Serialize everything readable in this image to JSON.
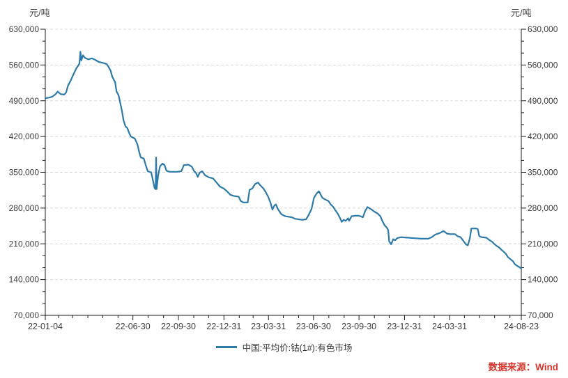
{
  "chart": {
    "unit_left": "元/吨",
    "unit_right": "元/吨",
    "legend_label": "中国:平均价:钴(1#):有色市场",
    "source": "数据来源：Wind"
  },
  "colors": {
    "line": "#2d7aa8",
    "grid": "#d8d8d8",
    "axis": "#1a1a1a",
    "tick_label": "#3d3d3d",
    "source_red": "#d9342b"
  },
  "chart_data": {
    "type": "line",
    "title": "",
    "ylabel": "元/吨",
    "ylim": [
      70000,
      630000
    ],
    "y_major_step": 70000,
    "y_minor_divisions": 3,
    "grid": "horizontal-dashed",
    "legend_position": "bottom-center",
    "x_range": [
      "2022-01-04",
      "2024-08-23"
    ],
    "y_ticks": [
      {
        "v": 630000,
        "label": "630,000"
      },
      {
        "v": 560000,
        "label": "560,000"
      },
      {
        "v": 490000,
        "label": "490,000"
      },
      {
        "v": 420000,
        "label": "420,000"
      },
      {
        "v": 350000,
        "label": "350,000"
      },
      {
        "v": 280000,
        "label": "280,000"
      },
      {
        "v": 210000,
        "label": "210,000"
      },
      {
        "v": 140000,
        "label": "140,000"
      },
      {
        "v": 70000,
        "label": "70,000"
      }
    ],
    "x_ticks": [
      {
        "date": "2022-01-04",
        "label": "22-01-04"
      },
      {
        "date": "2022-06-30",
        "label": "22-06-30"
      },
      {
        "date": "2022-09-30",
        "label": "22-09-30"
      },
      {
        "date": "2022-12-31",
        "label": "22-12-31"
      },
      {
        "date": "2023-03-31",
        "label": "23-03-31"
      },
      {
        "date": "2023-06-30",
        "label": "23-06-30"
      },
      {
        "date": "2023-09-30",
        "label": "23-09-30"
      },
      {
        "date": "2023-12-31",
        "label": "23-12-31"
      },
      {
        "date": "2024-03-31",
        "label": "24-03-31"
      },
      {
        "date": "2024-08-23",
        "label": "24-08-23"
      }
    ],
    "series": [
      {
        "name": "中国:平均价:钴(1#):有色市场",
        "color": "#2d7aa8",
        "points": [
          [
            "2022-01-04",
            495000
          ],
          [
            "2022-01-11",
            496000
          ],
          [
            "2022-01-18",
            498000
          ],
          [
            "2022-01-25",
            503000
          ],
          [
            "2022-01-29",
            508000
          ],
          [
            "2022-02-04",
            503000
          ],
          [
            "2022-02-11",
            502000
          ],
          [
            "2022-02-15",
            506000
          ],
          [
            "2022-02-19",
            520000
          ],
          [
            "2022-02-25",
            531000
          ],
          [
            "2022-03-03",
            544000
          ],
          [
            "2022-03-08",
            554000
          ],
          [
            "2022-03-11",
            558000
          ],
          [
            "2022-03-14",
            563000
          ],
          [
            "2022-03-16",
            586000
          ],
          [
            "2022-03-18",
            569000
          ],
          [
            "2022-03-21",
            579000
          ],
          [
            "2022-03-25",
            574000
          ],
          [
            "2022-04-01",
            571000
          ],
          [
            "2022-04-08",
            573000
          ],
          [
            "2022-04-15",
            570000
          ],
          [
            "2022-04-22",
            566000
          ],
          [
            "2022-05-01",
            564000
          ],
          [
            "2022-05-08",
            562000
          ],
          [
            "2022-05-12",
            556000
          ],
          [
            "2022-05-16",
            549000
          ],
          [
            "2022-05-19",
            538000
          ],
          [
            "2022-05-23",
            530000
          ],
          [
            "2022-05-25",
            527000
          ],
          [
            "2022-05-28",
            508000
          ],
          [
            "2022-06-01",
            501000
          ],
          [
            "2022-06-04",
            488000
          ],
          [
            "2022-06-08",
            470000
          ],
          [
            "2022-06-11",
            452000
          ],
          [
            "2022-06-15",
            440000
          ],
          [
            "2022-06-19",
            436000
          ],
          [
            "2022-06-22",
            428000
          ],
          [
            "2022-06-26",
            420000
          ],
          [
            "2022-07-04",
            416000
          ],
          [
            "2022-07-09",
            405000
          ],
          [
            "2022-07-13",
            389000
          ],
          [
            "2022-07-16",
            379000
          ],
          [
            "2022-07-22",
            377000
          ],
          [
            "2022-07-26",
            364000
          ],
          [
            "2022-07-30",
            352000
          ],
          [
            "2022-08-06",
            350000
          ],
          [
            "2022-08-10",
            332000
          ],
          [
            "2022-08-13",
            319000
          ],
          [
            "2022-08-15",
            317000
          ],
          [
            "2022-08-16",
            379000
          ],
          [
            "2022-08-17",
            317000
          ],
          [
            "2022-08-20",
            344000
          ],
          [
            "2022-08-24",
            362000
          ],
          [
            "2022-08-29",
            367000
          ],
          [
            "2022-09-02",
            364000
          ],
          [
            "2022-09-06",
            353000
          ],
          [
            "2022-09-13",
            351000
          ],
          [
            "2022-09-27",
            351000
          ],
          [
            "2022-10-06",
            352000
          ],
          [
            "2022-10-11",
            364000
          ],
          [
            "2022-10-20",
            365000
          ],
          [
            "2022-10-27",
            361000
          ],
          [
            "2022-11-01",
            352000
          ],
          [
            "2022-11-05",
            348000
          ],
          [
            "2022-11-08",
            341000
          ],
          [
            "2022-11-12",
            349000
          ],
          [
            "2022-11-17",
            352000
          ],
          [
            "2022-11-23",
            344000
          ],
          [
            "2022-12-01",
            340000
          ],
          [
            "2022-12-09",
            338000
          ],
          [
            "2022-12-16",
            330000
          ],
          [
            "2022-12-23",
            322000
          ],
          [
            "2022-12-31",
            318000
          ],
          [
            "2023-01-06",
            313000
          ],
          [
            "2023-01-13",
            306000
          ],
          [
            "2023-01-19",
            304000
          ],
          [
            "2023-01-30",
            302000
          ],
          [
            "2023-02-03",
            294000
          ],
          [
            "2023-02-08",
            291000
          ],
          [
            "2023-02-17",
            291000
          ],
          [
            "2023-02-21",
            316000
          ],
          [
            "2023-02-26",
            318000
          ],
          [
            "2023-03-04",
            327000
          ],
          [
            "2023-03-10",
            330000
          ],
          [
            "2023-03-14",
            325000
          ],
          [
            "2023-03-21",
            318000
          ],
          [
            "2023-03-25",
            312000
          ],
          [
            "2023-03-30",
            303000
          ],
          [
            "2023-04-04",
            291000
          ],
          [
            "2023-04-08",
            277000
          ],
          [
            "2023-04-12",
            285000
          ],
          [
            "2023-04-15",
            287000
          ],
          [
            "2023-04-19",
            278000
          ],
          [
            "2023-04-26",
            268000
          ],
          [
            "2023-05-04",
            264000
          ],
          [
            "2023-05-17",
            262000
          ],
          [
            "2023-05-24",
            259000
          ],
          [
            "2023-06-07",
            257000
          ],
          [
            "2023-06-15",
            258000
          ],
          [
            "2023-06-20",
            266000
          ],
          [
            "2023-06-26",
            278000
          ],
          [
            "2023-07-01",
            300000
          ],
          [
            "2023-07-06",
            308000
          ],
          [
            "2023-07-11",
            313000
          ],
          [
            "2023-07-18",
            300000
          ],
          [
            "2023-07-25",
            296000
          ],
          [
            "2023-07-30",
            294000
          ],
          [
            "2023-08-04",
            287000
          ],
          [
            "2023-08-09",
            282000
          ],
          [
            "2023-08-13",
            276000
          ],
          [
            "2023-08-18",
            269000
          ],
          [
            "2023-08-23",
            260000
          ],
          [
            "2023-08-26",
            253000
          ],
          [
            "2023-08-30",
            257000
          ],
          [
            "2023-09-03",
            255000
          ],
          [
            "2023-09-08",
            260000
          ],
          [
            "2023-09-10",
            255000
          ],
          [
            "2023-09-15",
            264000
          ],
          [
            "2023-09-22",
            265000
          ],
          [
            "2023-09-30",
            265000
          ],
          [
            "2023-10-08",
            262000
          ],
          [
            "2023-10-12",
            273000
          ],
          [
            "2023-10-17",
            282000
          ],
          [
            "2023-10-24",
            278000
          ],
          [
            "2023-10-31",
            273000
          ],
          [
            "2023-11-07",
            269000
          ],
          [
            "2023-11-12",
            264000
          ],
          [
            "2023-11-16",
            255000
          ],
          [
            "2023-11-21",
            246000
          ],
          [
            "2023-11-25",
            242000
          ],
          [
            "2023-11-28",
            237000
          ],
          [
            "2023-11-30",
            215000
          ],
          [
            "2023-12-04",
            209000
          ],
          [
            "2023-12-08",
            219000
          ],
          [
            "2023-12-12",
            217000
          ],
          [
            "2023-12-16",
            221000
          ],
          [
            "2023-12-23",
            223000
          ],
          [
            "2024-01-06",
            222000
          ],
          [
            "2024-01-20",
            221000
          ],
          [
            "2024-02-03",
            220000
          ],
          [
            "2024-02-17",
            220000
          ],
          [
            "2024-02-24",
            223000
          ],
          [
            "2024-03-02",
            228000
          ],
          [
            "2024-03-11",
            231000
          ],
          [
            "2024-03-19",
            235000
          ],
          [
            "2024-03-26",
            230000
          ],
          [
            "2024-04-02",
            229000
          ],
          [
            "2024-04-11",
            229000
          ],
          [
            "2024-04-16",
            225000
          ],
          [
            "2024-04-22",
            223000
          ],
          [
            "2024-04-27",
            217000
          ],
          [
            "2024-05-03",
            209000
          ],
          [
            "2024-05-07",
            207000
          ],
          [
            "2024-05-11",
            221000
          ],
          [
            "2024-05-14",
            240000
          ],
          [
            "2024-05-23",
            240000
          ],
          [
            "2024-05-27",
            239000
          ],
          [
            "2024-05-30",
            225000
          ],
          [
            "2024-06-04",
            223000
          ],
          [
            "2024-06-13",
            222000
          ],
          [
            "2024-06-20",
            217000
          ],
          [
            "2024-06-25",
            214000
          ],
          [
            "2024-06-29",
            210000
          ],
          [
            "2024-07-04",
            206000
          ],
          [
            "2024-07-09",
            203000
          ],
          [
            "2024-07-13",
            199000
          ],
          [
            "2024-07-18",
            195000
          ],
          [
            "2024-07-23",
            190000
          ],
          [
            "2024-07-27",
            184000
          ],
          [
            "2024-08-01",
            180000
          ],
          [
            "2024-08-06",
            176000
          ],
          [
            "2024-08-10",
            170000
          ],
          [
            "2024-08-16",
            166000
          ],
          [
            "2024-08-23",
            162000
          ]
        ]
      }
    ]
  }
}
